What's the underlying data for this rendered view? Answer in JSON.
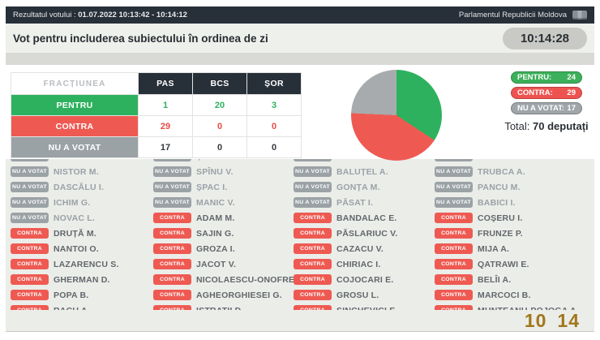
{
  "navbar": {
    "left_prefix": "Rezultatul votului :",
    "left_datetime": "01.07.2022 10:13:42 - 10:14:12",
    "right_label": "Parlamentul Republicii Moldova"
  },
  "header": {
    "title": "Vot pentru includerea subiectului în ordinea de zi",
    "clock": "10:14:28"
  },
  "table": {
    "faction_header": "FRACȚIUNEA",
    "factions": [
      "PAS",
      "BCS",
      "ȘOR"
    ],
    "rows": [
      {
        "label": "PENTRU",
        "values": [
          "1",
          "20",
          "3"
        ],
        "color": "#2eb15e",
        "value_color": "#2eb15e"
      },
      {
        "label": "CONTRA",
        "values": [
          "29",
          "0",
          "0"
        ],
        "color": "#ee5a52",
        "value_color": "#e84c44"
      },
      {
        "label": "NU A VOTAT",
        "values": [
          "17",
          "0",
          "0"
        ],
        "color": "#9ba2a6",
        "value_color": "#33383d"
      }
    ]
  },
  "chart_data": {
    "type": "pie",
    "title": "",
    "labels": [
      "PENTRU",
      "CONTRA",
      "NU A VOTAT"
    ],
    "values": [
      24,
      29,
      17
    ],
    "colors": [
      "#2eb15e",
      "#ee5a52",
      "#a7abad"
    ],
    "start_angle_deg": 0,
    "direction": "clockwise",
    "legend_position": "none"
  },
  "stats": {
    "pills": [
      {
        "label": "PENTRU:",
        "value": "24",
        "color": "#3cb05a"
      },
      {
        "label": "CONTRA:",
        "value": "29",
        "color": "#ee5350"
      },
      {
        "label": "NU A VOTAT:",
        "value": "17",
        "color": "#9fa5a8"
      }
    ],
    "total_label": "Total:",
    "total_value": "70 deputați"
  },
  "votes": {
    "badge_colors": {
      "CONTRA": "#ee5a52",
      "NU A VOTAT": "#9ba2a6"
    },
    "name_colors": {
      "CONTRA": "#62676c",
      "NU A VOTAT": "#9ba1a6"
    },
    "columns": [
      {
        "rows": [
          {
            "vote": "NU A VOTAT",
            "name": "GROSU I."
          },
          {
            "vote": "NU A VOTAT",
            "name": "NISTOR M."
          },
          {
            "vote": "NU A VOTAT",
            "name": "DASCĂLU I."
          },
          {
            "vote": "NU A VOTAT",
            "name": "ICHIM G."
          },
          {
            "vote": "NU A VOTAT",
            "name": "NOVAC L."
          },
          {
            "vote": "CONTRA",
            "name": "DRUȚĂ M."
          },
          {
            "vote": "CONTRA",
            "name": "NANTOI O."
          },
          {
            "vote": "CONTRA",
            "name": "LAZARENCU S."
          },
          {
            "vote": "CONTRA",
            "name": "GHERMAN D."
          },
          {
            "vote": "CONTRA",
            "name": "POPA B."
          },
          {
            "vote": "CONTRA",
            "name": "RACU A."
          }
        ]
      },
      {
        "rows": [
          {
            "vote": "NU A VOTAT",
            "name": "ȘTIRBU V."
          },
          {
            "vote": "NU A VOTAT",
            "name": "SPÎNU V."
          },
          {
            "vote": "NU A VOTAT",
            "name": "ȘPAC I."
          },
          {
            "vote": "NU A VOTAT",
            "name": "MANIC V."
          },
          {
            "vote": "CONTRA",
            "name": "ADAM M."
          },
          {
            "vote": "CONTRA",
            "name": "SAJIN G."
          },
          {
            "vote": "CONTRA",
            "name": "GROZA I."
          },
          {
            "vote": "CONTRA",
            "name": "JACOT V."
          },
          {
            "vote": "CONTRA",
            "name": "NICOLAESCU-ONOFREI L."
          },
          {
            "vote": "CONTRA",
            "name": "AGHEORGHIESEI G."
          },
          {
            "vote": "CONTRA",
            "name": "ISTRATII D."
          }
        ]
      },
      {
        "rows": [
          {
            "vote": "NU A VOTAT",
            "name": "STAMATE O."
          },
          {
            "vote": "NU A VOTAT",
            "name": "BALUȚEL A."
          },
          {
            "vote": "NU A VOTAT",
            "name": "GONȚA M."
          },
          {
            "vote": "NU A VOTAT",
            "name": "PĂSAT I."
          },
          {
            "vote": "CONTRA",
            "name": "BANDALAC E."
          },
          {
            "vote": "CONTRA",
            "name": "PĂSLARIUC V."
          },
          {
            "vote": "CONTRA",
            "name": "CAZACU V."
          },
          {
            "vote": "CONTRA",
            "name": "CHIRIAC I."
          },
          {
            "vote": "CONTRA",
            "name": "COJOCARI E."
          },
          {
            "vote": "CONTRA",
            "name": "GROSU L."
          },
          {
            "vote": "CONTRA",
            "name": "SINCHEVICI E."
          }
        ]
      },
      {
        "rows": [
          {
            "vote": "NU A VOTAT",
            "name": "CALINICI V."
          },
          {
            "vote": "NU A VOTAT",
            "name": "TRUBCA A."
          },
          {
            "vote": "NU A VOTAT",
            "name": "PANCU M."
          },
          {
            "vote": "NU A VOTAT",
            "name": "BABICI I."
          },
          {
            "vote": "CONTRA",
            "name": "COȘERU I."
          },
          {
            "vote": "CONTRA",
            "name": "FRUNZE P."
          },
          {
            "vote": "CONTRA",
            "name": "MIJA A."
          },
          {
            "vote": "CONTRA",
            "name": "QATRAWI E."
          },
          {
            "vote": "CONTRA",
            "name": "BELÎI A."
          },
          {
            "vote": "CONTRA",
            "name": "MARCOCI B."
          },
          {
            "vote": "CONTRA",
            "name": "MUNTEANU-POJOGA A."
          }
        ]
      }
    ]
  },
  "overlay_clock": {
    "hour": "10",
    "minute": "14"
  }
}
